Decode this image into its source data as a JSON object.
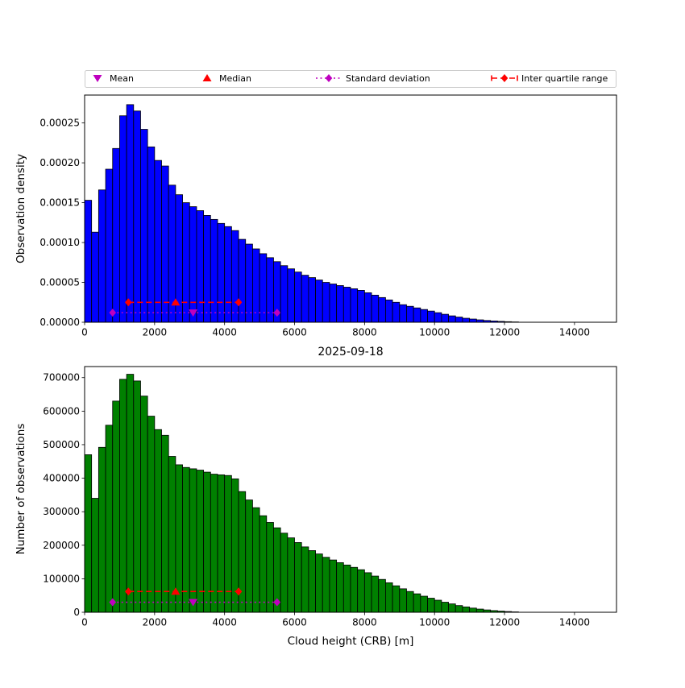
{
  "figure": {
    "background": "#ffffff",
    "date_label": "2025-09-18",
    "xlabel": "Cloud height (CRB) [m]"
  },
  "legend": {
    "border_color": "#cccccc",
    "items": [
      {
        "label": "Mean",
        "marker": "triangle-down",
        "color": "#bf00bf",
        "linestyle": "none"
      },
      {
        "label": "Median",
        "marker": "triangle-up",
        "color": "#ff0000",
        "linestyle": "none"
      },
      {
        "label": "Standard deviation",
        "marker": "diamond",
        "color": "#bf00bf",
        "linestyle": "dotted"
      },
      {
        "label": "Inter quartile range",
        "marker": "diamond",
        "color": "#ff0000",
        "linestyle": "dashed"
      }
    ]
  },
  "marker_colors": {
    "mean": "#bf00bf",
    "median": "#ff0000",
    "std": "#bf00bf",
    "iqr": "#ff0000"
  },
  "chart_data": [
    {
      "id": "density",
      "type": "bar",
      "title": "",
      "ylabel": "Observation density",
      "bar_color": "#0000ff",
      "edge_color": "#000000",
      "bin_start": 0,
      "bin_width": 200,
      "xlim": [
        0,
        15200
      ],
      "ylim": [
        0,
        0.000285
      ],
      "x_ticks": [
        0,
        2000,
        4000,
        6000,
        8000,
        10000,
        12000,
        14000
      ],
      "x_tick_labels": [
        "0",
        "2000",
        "4000",
        "6000",
        "8000",
        "10000",
        "12000",
        "14000"
      ],
      "y_ticks": [
        0,
        5e-05,
        0.0001,
        0.00015,
        0.0002,
        0.00025
      ],
      "y_tick_labels": [
        "0.00000",
        "0.00005",
        "0.00010",
        "0.00015",
        "0.00020",
        "0.00025"
      ],
      "values": [
        0.000153,
        0.000113,
        0.000166,
        0.000192,
        0.000218,
        0.000259,
        0.000273,
        0.000265,
        0.000242,
        0.00022,
        0.000203,
        0.000196,
        0.000172,
        0.00016,
        0.00015,
        0.000145,
        0.00014,
        0.000134,
        0.000129,
        0.000124,
        0.00012,
        0.000115,
        0.000104,
        9.8e-05,
        9.2e-05,
        8.6e-05,
        8.1e-05,
        7.6e-05,
        7.1e-05,
        6.7e-05,
        6.3e-05,
        5.9e-05,
        5.6e-05,
        5.3e-05,
        5e-05,
        4.8e-05,
        4.6e-05,
        4.4e-05,
        4.2e-05,
        4e-05,
        3.7e-05,
        3.4e-05,
        3.1e-05,
        2.8e-05,
        2.5e-05,
        2.2e-05,
        2e-05,
        1.8e-05,
        1.6e-05,
        1.4e-05,
        1.2e-05,
        1e-05,
        8e-06,
        6.5e-06,
        5e-06,
        4e-06,
        3e-06,
        2.2e-06,
        1.6e-06,
        1.1e-06,
        7e-07,
        4e-07
      ],
      "stats": {
        "mean": 3100,
        "median": 2600,
        "std_range": [
          800,
          5500
        ],
        "iqr_range": [
          1250,
          4400
        ],
        "mean_line_y": 1.2e-05,
        "median_line_y": 2.5e-05
      }
    },
    {
      "id": "counts",
      "type": "bar",
      "title": "",
      "ylabel": "Number of observations",
      "bar_color": "#008000",
      "edge_color": "#000000",
      "bin_start": 0,
      "bin_width": 200,
      "xlim": [
        0,
        15200
      ],
      "ylim": [
        0,
        733000
      ],
      "x_ticks": [
        0,
        2000,
        4000,
        6000,
        8000,
        10000,
        12000,
        14000
      ],
      "x_tick_labels": [
        "0",
        "2000",
        "4000",
        "6000",
        "8000",
        "10000",
        "12000",
        "14000"
      ],
      "y_ticks": [
        0,
        100000,
        200000,
        300000,
        400000,
        500000,
        600000,
        700000
      ],
      "y_tick_labels": [
        "0",
        "100000",
        "200000",
        "300000",
        "400000",
        "500000",
        "600000",
        "700000"
      ],
      "values": [
        470000,
        340000,
        492000,
        558000,
        630000,
        695000,
        710000,
        690000,
        645000,
        585000,
        545000,
        528000,
        465000,
        440000,
        432000,
        428000,
        424000,
        418000,
        412000,
        410000,
        408000,
        398000,
        360000,
        335000,
        312000,
        288000,
        268000,
        252000,
        236000,
        222000,
        208000,
        195000,
        184000,
        174000,
        164000,
        156000,
        148000,
        141000,
        134000,
        127000,
        118000,
        108000,
        98000,
        88000,
        79000,
        70000,
        62000,
        55000,
        48000,
        42000,
        36000,
        30000,
        25000,
        20000,
        16000,
        12500,
        9500,
        7000,
        5000,
        3500,
        2200,
        1200
      ],
      "stats": {
        "mean": 3100,
        "median": 2600,
        "std_range": [
          800,
          5500
        ],
        "iqr_range": [
          1250,
          4400
        ],
        "mean_line_y": 30000,
        "median_line_y": 62000
      }
    }
  ]
}
